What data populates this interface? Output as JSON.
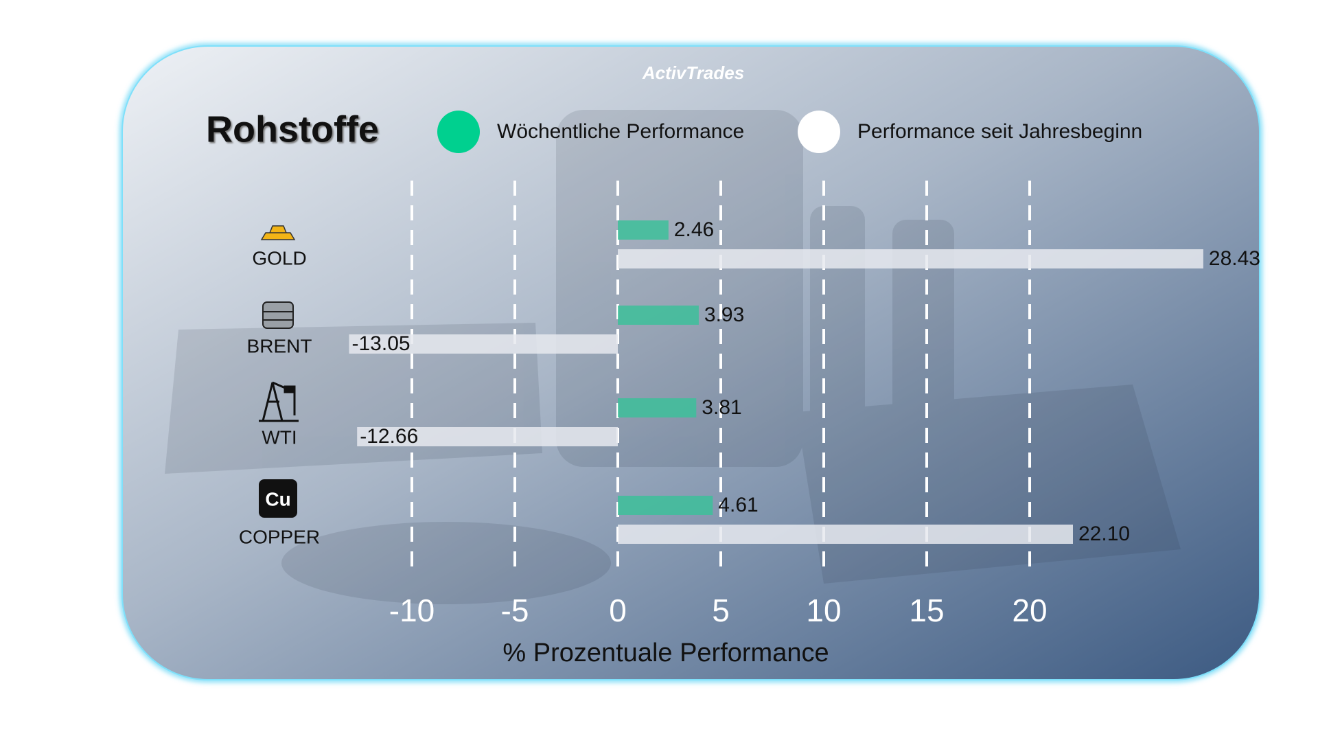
{
  "brand": "ActivTrades",
  "chart_data": {
    "type": "hbar",
    "title": "Rohstoffe",
    "categories": [
      "GOLD",
      "BRENT",
      "WTI",
      "COPPER"
    ],
    "series": [
      {
        "name": "Wöchentliche Performance",
        "color": "#3dbf9a",
        "values": [
          2.46,
          3.93,
          3.81,
          4.61
        ]
      },
      {
        "name": "Performance seit Jahresbeginn",
        "color": "#e6e9ee",
        "values": [
          28.43,
          -13.05,
          -12.66,
          22.1
        ],
        "value_labels": [
          "28.43",
          "-13.05",
          "-12.66",
          "22.10"
        ]
      }
    ],
    "xlim": [
      -15,
      30
    ],
    "xticks": [
      -10,
      -5,
      0,
      5,
      10,
      15,
      20
    ],
    "xlabel": "% Prozentuale Performance",
    "grid": true
  }
}
